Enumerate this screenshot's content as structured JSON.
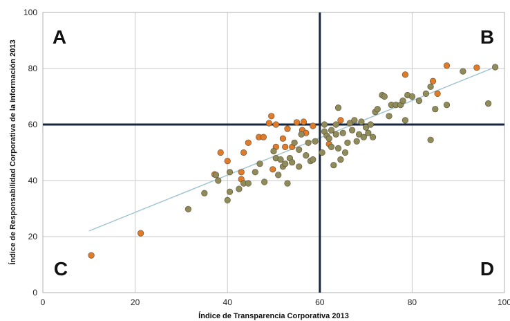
{
  "chart_data": {
    "type": "scatter",
    "title": "",
    "xlabel": "Índice de Transparencia Corporativa 2013",
    "ylabel": "Índice de Responsabilidad Corporativa de la Información 2013",
    "xlim": [
      0,
      100
    ],
    "ylim": [
      0,
      100
    ],
    "x_ticks": [
      0,
      20,
      40,
      60,
      80,
      100
    ],
    "y_ticks": [
      0,
      20,
      40,
      60,
      80,
      100
    ],
    "grid": true,
    "quadrant_dividers": {
      "x": 60,
      "y": 60
    },
    "quadrant_labels": [
      {
        "text": "A",
        "position": "top-left"
      },
      {
        "text": "B",
        "position": "top-right"
      },
      {
        "text": "C",
        "position": "bottom-left"
      },
      {
        "text": "D",
        "position": "bottom-right"
      }
    ],
    "trendline": {
      "from": [
        10,
        22
      ],
      "to": [
        98,
        80.5
      ]
    },
    "colors": {
      "orange": "#e07b2a",
      "olive": "#8f8c5c",
      "trend": "#9cc3cf",
      "divider": "#17253f"
    },
    "series": [
      {
        "color": "#e07b2a",
        "points": [
          [
            10.5,
            13.3
          ],
          [
            21.2,
            21.2
          ],
          [
            37.2,
            42.2
          ],
          [
            38.5,
            50.0
          ],
          [
            40.0,
            47.0
          ],
          [
            43.0,
            43.0
          ],
          [
            43.0,
            40.5
          ],
          [
            43.5,
            50.0
          ],
          [
            44.5,
            53.5
          ],
          [
            46.8,
            55.5
          ],
          [
            47.8,
            55.5
          ],
          [
            49.0,
            60.5
          ],
          [
            49.5,
            63.0
          ],
          [
            49.8,
            44.0
          ],
          [
            50.5,
            52.0
          ],
          [
            50.5,
            60.0
          ],
          [
            52.0,
            55.0
          ],
          [
            52.5,
            52.0
          ],
          [
            53.0,
            58.5
          ],
          [
            54.0,
            52.0
          ],
          [
            55.0,
            60.8
          ],
          [
            56.2,
            58.0
          ],
          [
            56.5,
            61.0
          ],
          [
            57.0,
            57.0
          ],
          [
            58.5,
            59.5
          ],
          [
            62.0,
            53.0
          ],
          [
            64.5,
            61.5
          ],
          [
            78.5,
            77.8
          ],
          [
            84.5,
            75.5
          ],
          [
            85.5,
            71.0
          ],
          [
            87.5,
            81.0
          ],
          [
            94.0,
            80.3
          ]
        ]
      },
      {
        "color": "#8f8c5c",
        "points": [
          [
            31.5,
            29.8
          ],
          [
            35.0,
            35.5
          ],
          [
            37.5,
            42.0
          ],
          [
            38.0,
            40.0
          ],
          [
            40.0,
            33.0
          ],
          [
            40.5,
            36.0
          ],
          [
            40.5,
            43.0
          ],
          [
            42.5,
            37.0
          ],
          [
            43.5,
            39.0
          ],
          [
            44.5,
            39.0
          ],
          [
            46.0,
            43.0
          ],
          [
            47.0,
            46.0
          ],
          [
            48.0,
            39.5
          ],
          [
            50.0,
            50.5
          ],
          [
            50.5,
            48.0
          ],
          [
            51.0,
            42.0
          ],
          [
            51.5,
            47.5
          ],
          [
            52.0,
            45.0
          ],
          [
            52.5,
            46.0
          ],
          [
            53.0,
            39.0
          ],
          [
            53.5,
            48.0
          ],
          [
            54.0,
            46.5
          ],
          [
            54.5,
            53.5
          ],
          [
            55.5,
            51.0
          ],
          [
            55.5,
            45.0
          ],
          [
            56.0,
            56.5
          ],
          [
            57.0,
            49.0
          ],
          [
            57.5,
            53.5
          ],
          [
            58.0,
            47.0
          ],
          [
            58.5,
            47.5
          ],
          [
            59.0,
            54.0
          ],
          [
            60.5,
            50.0
          ],
          [
            61.0,
            60.0
          ],
          [
            61.0,
            57.5
          ],
          [
            61.5,
            56.0
          ],
          [
            62.0,
            55.0
          ],
          [
            62.5,
            58.0
          ],
          [
            62.5,
            52.0
          ],
          [
            63.0,
            45.5
          ],
          [
            63.5,
            60.0
          ],
          [
            63.5,
            56.5
          ],
          [
            64.0,
            51.5
          ],
          [
            64.0,
            66.0
          ],
          [
            64.5,
            47.5
          ],
          [
            65.0,
            57.0
          ],
          [
            65.5,
            50.0
          ],
          [
            66.0,
            53.5
          ],
          [
            66.5,
            60.5
          ],
          [
            67.0,
            58.0
          ],
          [
            67.5,
            61.5
          ],
          [
            68.0,
            54.0
          ],
          [
            68.5,
            56.5
          ],
          [
            69.0,
            61.0
          ],
          [
            69.5,
            55.5
          ],
          [
            70.0,
            59.0
          ],
          [
            70.5,
            57.0
          ],
          [
            71.0,
            60.0
          ],
          [
            71.5,
            55.5
          ],
          [
            72.0,
            64.5
          ],
          [
            72.5,
            65.5
          ],
          [
            73.5,
            70.5
          ],
          [
            74.0,
            70.0
          ],
          [
            75.0,
            63.0
          ],
          [
            75.5,
            67.0
          ],
          [
            76.5,
            67.0
          ],
          [
            77.5,
            67.0
          ],
          [
            78.0,
            68.5
          ],
          [
            78.5,
            61.5
          ],
          [
            79.0,
            70.5
          ],
          [
            80.0,
            70.0
          ],
          [
            81.5,
            68.5
          ],
          [
            83.0,
            71.0
          ],
          [
            84.0,
            73.5
          ],
          [
            84.0,
            54.5
          ],
          [
            85.0,
            65.5
          ],
          [
            87.5,
            67.0
          ],
          [
            91.0,
            79.0
          ],
          [
            96.5,
            67.5
          ],
          [
            98.0,
            80.5
          ]
        ]
      }
    ]
  }
}
